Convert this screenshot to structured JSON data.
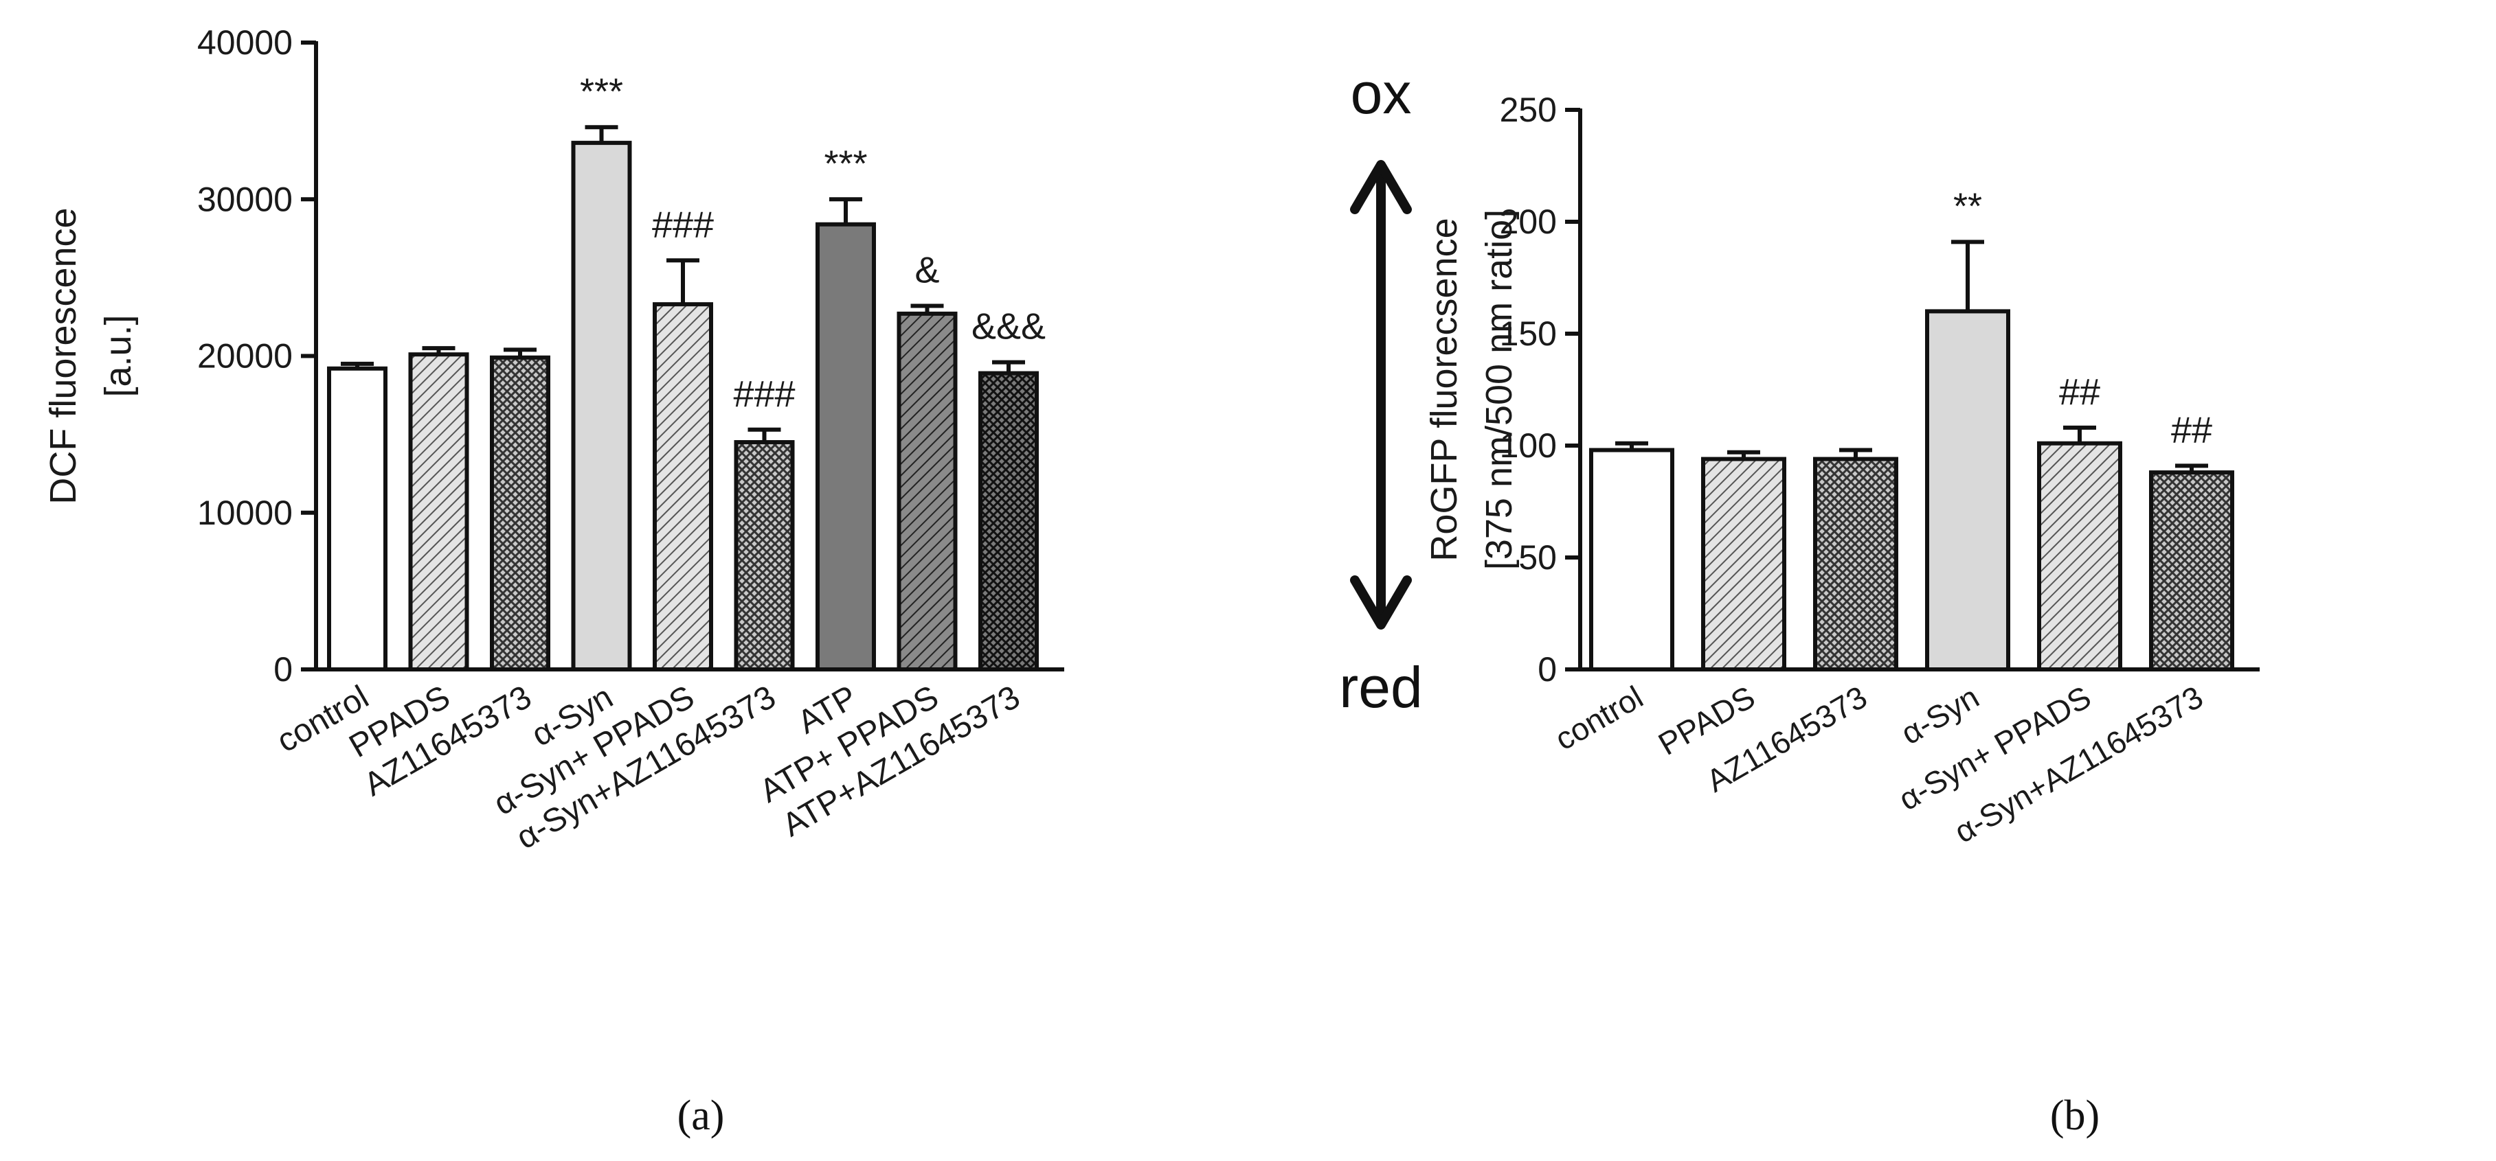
{
  "figure": {
    "panel_a_label": "(a)",
    "panel_b_label": "(b)",
    "redox_top_label": "ox",
    "redox_bottom_label": "red"
  },
  "colors": {
    "axis": "#111111",
    "bar_stroke": "#111111",
    "control_fill": "#ffffff",
    "ppads_hatch_fill": "#d6d6d6",
    "az_hatch_fill": "#9a9a9a",
    "asyn_fill": "#d9d9d9",
    "atp_fill": "#7a7a7a",
    "dark_hatch_fill": "#5a5a5a"
  },
  "chart_data": [
    {
      "id": "a",
      "type": "bar",
      "title": "",
      "xlabel": "",
      "ylabel": "DCF fluorescence",
      "ylabel_line2": "[a.u.]",
      "ylim": [
        0,
        40000
      ],
      "yticks": [
        "0",
        "10000",
        "20000",
        "30000",
        "40000"
      ],
      "categories": [
        "control",
        "PPADS",
        "AZ11645373",
        "α-Syn",
        "α-Syn+ PPADS",
        "α-Syn+AZ11645373",
        "ATP",
        "ATP+ PPADS",
        "ATP+AZ11645373"
      ],
      "values": [
        19200,
        20100,
        19900,
        33600,
        23300,
        14500,
        28400,
        22700,
        18900
      ],
      "errors": [
        300,
        400,
        500,
        1000,
        2800,
        800,
        1600,
        500,
        700
      ],
      "annotations": [
        "",
        "",
        "",
        "***",
        "###",
        "###",
        "***",
        "&",
        "&&&"
      ],
      "patterns": [
        "control",
        "ppads",
        "az",
        "asyn",
        "ppads",
        "az",
        "atp",
        "dark_ppads",
        "dark_az"
      ]
    },
    {
      "id": "b",
      "type": "bar",
      "title": "",
      "xlabel": "",
      "ylabel": "RoGFP fluorecsence",
      "ylabel_line2": "[375 nm/500 nm ratio]",
      "ylim": [
        0,
        250
      ],
      "yticks": [
        "0",
        "50",
        "100",
        "150",
        "200",
        "250"
      ],
      "categories": [
        "control",
        "PPADS",
        "AZ11645373",
        "α-Syn",
        "α-Syn+ PPADS",
        "α-Syn+AZ11645373"
      ],
      "values": [
        98,
        94,
        94,
        160,
        101,
        88
      ],
      "errors": [
        3,
        3,
        4,
        31,
        7,
        3
      ],
      "annotations": [
        "",
        "",
        "",
        "**",
        "##",
        "##"
      ],
      "patterns": [
        "control",
        "ppads",
        "az",
        "asyn",
        "ppads",
        "az"
      ]
    }
  ]
}
